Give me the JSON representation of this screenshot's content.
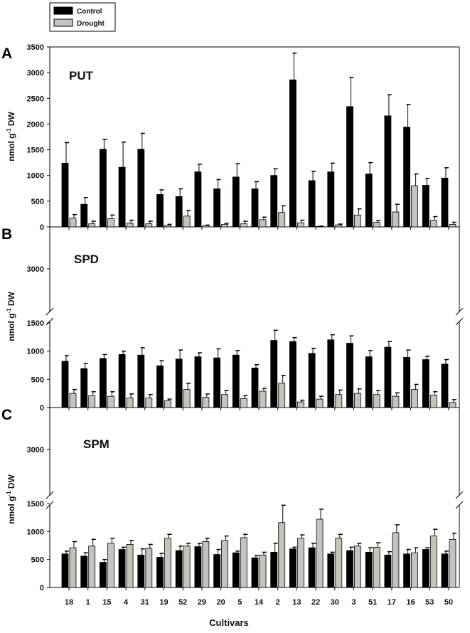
{
  "legend": {
    "entries": [
      {
        "label": "Control",
        "color": "#000000"
      },
      {
        "label": "Drought",
        "color": "#c3c4bc"
      }
    ]
  },
  "xlabel": "Cultivars",
  "ylabel_main": "nmol g",
  "ylabel_sup": "-1",
  "ylabel_unit": " DW",
  "chart_data": [
    {
      "type": "bar",
      "panel": "A",
      "title": "PUT",
      "ylabel": "nmol g-1 DW",
      "xlabel": "Cultivars",
      "ylim": [
        0,
        3500
      ],
      "yticks": [
        "0",
        "500",
        "1000",
        "1500",
        "2000",
        "2500",
        "3000",
        "3500"
      ],
      "categories": [
        "18",
        "1",
        "15",
        "4",
        "31",
        "19",
        "52",
        "29",
        "20",
        "5",
        "14",
        "2",
        "13",
        "22",
        "30",
        "3",
        "51",
        "17",
        "16",
        "53",
        "50"
      ],
      "series": [
        {
          "name": "Control",
          "values": [
            1240,
            440,
            1510,
            1160,
            1510,
            630,
            590,
            1070,
            740,
            970,
            740,
            1000,
            2860,
            900,
            1070,
            2340,
            1030,
            2160,
            1940,
            810,
            950
          ],
          "errors": [
            400,
            130,
            190,
            490,
            310,
            90,
            150,
            150,
            180,
            260,
            140,
            130,
            520,
            180,
            170,
            570,
            220,
            410,
            440,
            130,
            200
          ]
        },
        {
          "name": "Drought",
          "values": [
            170,
            60,
            160,
            70,
            60,
            30,
            210,
            25,
            50,
            60,
            140,
            280,
            80,
            10,
            40,
            230,
            90,
            290,
            800,
            130,
            50
          ],
          "errors": [
            70,
            50,
            70,
            60,
            50,
            20,
            110,
            10,
            20,
            50,
            50,
            130,
            50,
            5,
            15,
            120,
            30,
            150,
            230,
            70,
            40
          ]
        }
      ]
    },
    {
      "type": "bar",
      "panel": "B",
      "title": "SPD",
      "ylabel": "nmol g-1 DW",
      "xlabel": "Cultivars",
      "ylim": [
        0,
        3000
      ],
      "axis_break": [
        1500,
        3000
      ],
      "yticks": [
        "0",
        "500",
        "1000",
        "1500",
        "3000"
      ],
      "categories": [
        "18",
        "1",
        "15",
        "4",
        "31",
        "19",
        "52",
        "29",
        "20",
        "5",
        "14",
        "2",
        "13",
        "22",
        "30",
        "3",
        "51",
        "17",
        "16",
        "53",
        "50"
      ],
      "series": [
        {
          "name": "Control",
          "values": [
            820,
            690,
            870,
            940,
            930,
            740,
            860,
            900,
            880,
            930,
            700,
            1190,
            1170,
            960,
            1200,
            1140,
            900,
            1070,
            890,
            850,
            770
          ],
          "errors": [
            100,
            90,
            70,
            60,
            130,
            90,
            160,
            70,
            160,
            80,
            60,
            180,
            70,
            90,
            90,
            130,
            110,
            100,
            130,
            60,
            80
          ]
        },
        {
          "name": "Drought",
          "values": [
            250,
            210,
            200,
            170,
            170,
            120,
            320,
            180,
            230,
            160,
            290,
            430,
            100,
            150,
            230,
            250,
            230,
            200,
            320,
            220,
            90
          ],
          "errors": [
            70,
            70,
            80,
            70,
            60,
            30,
            110,
            60,
            70,
            50,
            50,
            140,
            30,
            50,
            80,
            80,
            70,
            60,
            90,
            60,
            50
          ]
        }
      ]
    },
    {
      "type": "bar",
      "panel": "C",
      "title": "SPM",
      "ylabel": "nmol g-1 DW",
      "xlabel": "Cultivars",
      "ylim": [
        0,
        3000
      ],
      "axis_break": [
        1500,
        3000
      ],
      "yticks": [
        "0",
        "500",
        "1000",
        "1500",
        "3000"
      ],
      "categories": [
        "18",
        "1",
        "15",
        "4",
        "31",
        "19",
        "52",
        "29",
        "20",
        "5",
        "14",
        "2",
        "13",
        "22",
        "30",
        "3",
        "51",
        "17",
        "16",
        "53",
        "50"
      ],
      "series": [
        {
          "name": "Control",
          "values": [
            600,
            560,
            450,
            680,
            580,
            540,
            660,
            730,
            590,
            620,
            530,
            630,
            690,
            710,
            600,
            660,
            630,
            580,
            600,
            680,
            600
          ],
          "errors": [
            50,
            60,
            50,
            40,
            110,
            70,
            80,
            60,
            90,
            30,
            40,
            160,
            30,
            80,
            30,
            60,
            80,
            60,
            80,
            30,
            50
          ]
        },
        {
          "name": "Drought",
          "values": [
            710,
            740,
            790,
            770,
            700,
            880,
            740,
            820,
            840,
            890,
            580,
            1160,
            880,
            1220,
            880,
            740,
            720,
            980,
            620,
            920,
            860
          ],
          "errors": [
            110,
            120,
            90,
            70,
            70,
            70,
            50,
            60,
            80,
            60,
            50,
            310,
            60,
            180,
            70,
            50,
            80,
            140,
            90,
            120,
            110
          ]
        }
      ]
    }
  ]
}
